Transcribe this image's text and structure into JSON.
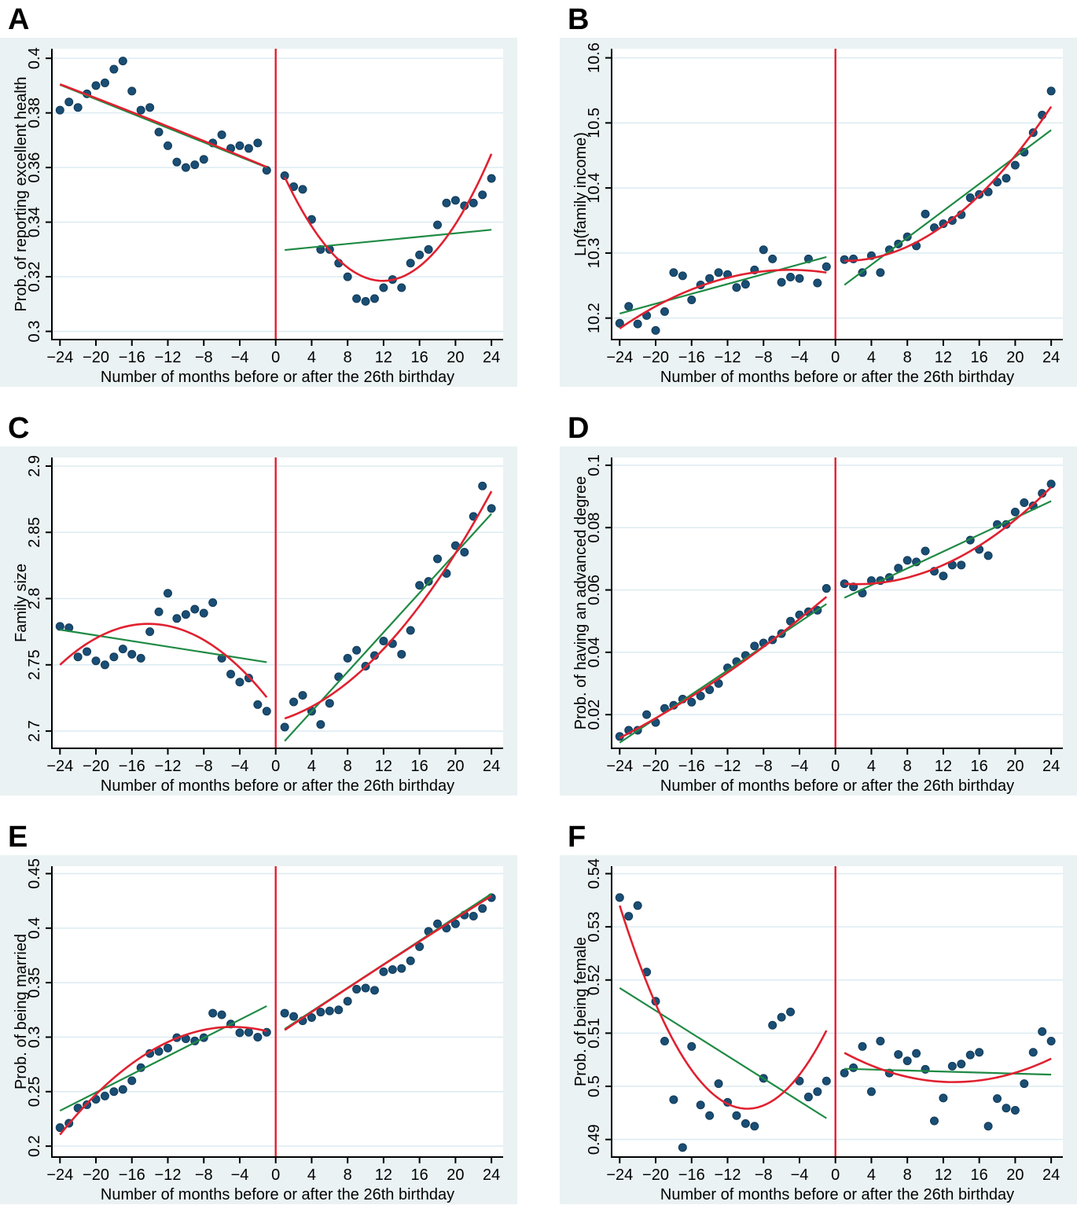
{
  "colors": {
    "page_bg": "#ffffff",
    "panel_bg": "#eaf2f3",
    "plot_bg": "#ffffff",
    "gridline": "#dcebf2",
    "axis": "#000000",
    "text": "#000000",
    "scatter_fill": "#1a4e74",
    "scatter_edge": "#123a58",
    "fit_red": "#e02130",
    "fit_green": "#1f8a44",
    "cutoff_red": "#e02130"
  },
  "x_axis": {
    "title": "Number of months before or after the 26th birthday",
    "tick_values": [
      -24,
      -20,
      -16,
      -12,
      -8,
      -4,
      0,
      4,
      8,
      12,
      16,
      20,
      24
    ],
    "tick_labels": [
      "−24",
      "−20",
      "−16",
      "−12",
      "−8",
      "−4",
      "0",
      "4",
      "8",
      "12",
      "16",
      "20",
      "24"
    ]
  },
  "chart_data": [
    {
      "letter": "A",
      "type": "scatter",
      "ylabel": "Prob. of reporting excellent health",
      "ytick_values": [
        0.3,
        0.32,
        0.34,
        0.36,
        0.38,
        0.4
      ],
      "ytick_labels": [
        "0.3",
        "0.32",
        "0.34",
        "0.36",
        "0.38",
        "0.4"
      ],
      "ylim": [
        0.297,
        0.4035
      ],
      "cutoff_x": 0,
      "x_pre_start": -24,
      "x_post_start": 1,
      "y_pre": [
        0.381,
        0.384,
        0.382,
        0.387,
        0.39,
        0.391,
        0.396,
        0.399,
        0.388,
        0.381,
        0.382,
        0.373,
        0.368,
        0.362,
        0.36,
        0.361,
        0.363,
        0.369,
        0.372,
        0.367,
        0.368,
        0.367,
        0.369,
        0.359
      ],
      "y_post": [
        0.357,
        0.353,
        0.352,
        0.341,
        0.33,
        0.33,
        0.325,
        0.32,
        0.312,
        0.311,
        0.312,
        0.316,
        0.319,
        0.316,
        0.325,
        0.328,
        0.33,
        0.339,
        0.347,
        0.348,
        0.346,
        0.347,
        0.35,
        0.356
      ],
      "fits": [
        {
          "kind": "linear",
          "color": "green",
          "points": [
            [
              -24,
              0.3903
            ],
            [
              -1,
              0.36
            ]
          ]
        },
        {
          "kind": "quadratic",
          "color": "red",
          "points": [
            [
              -24,
              0.3905
            ],
            [
              -12.5,
              0.3757
            ],
            [
              -1,
              0.3602
            ]
          ]
        },
        {
          "kind": "linear",
          "color": "green",
          "points": [
            [
              1,
              0.3298
            ],
            [
              24,
              0.3372
            ]
          ]
        },
        {
          "kind": "quadratic",
          "color": "red",
          "points": [
            [
              1,
              0.3565
            ],
            [
              12,
              0.3185
            ],
            [
              24,
              0.365
            ]
          ]
        }
      ]
    },
    {
      "letter": "B",
      "type": "scatter",
      "ylabel": "Ln(family income)",
      "ytick_values": [
        10.2,
        10.3,
        10.4,
        10.5,
        10.6
      ],
      "ytick_labels": [
        "10.2",
        "10.3",
        "10.4",
        "10.5",
        "10.6"
      ],
      "ylim": [
        10.167,
        10.614
      ],
      "cutoff_x": 0,
      "x_pre_start": -24,
      "x_post_start": 1,
      "y_pre": [
        10.192,
        10.218,
        10.191,
        10.204,
        10.181,
        10.21,
        10.27,
        10.265,
        10.228,
        10.251,
        10.261,
        10.27,
        10.267,
        10.247,
        10.252,
        10.274,
        10.305,
        10.291,
        10.255,
        10.263,
        10.261,
        10.291,
        10.254,
        10.279
      ],
      "y_post": [
        10.29,
        10.291,
        10.27,
        10.296,
        10.27,
        10.305,
        10.314,
        10.325,
        10.311,
        10.36,
        10.339,
        10.345,
        10.35,
        10.359,
        10.385,
        10.39,
        10.394,
        10.409,
        10.415,
        10.435,
        10.455,
        10.485,
        10.512,
        10.549
      ],
      "fits": [
        {
          "kind": "linear",
          "color": "green",
          "points": [
            [
              -24,
              10.207
            ],
            [
              -1,
              10.294
            ]
          ]
        },
        {
          "kind": "quadratic",
          "color": "red",
          "points": [
            [
              -24,
              10.184
            ],
            [
              -12,
              10.262
            ],
            [
              -1,
              10.27
            ]
          ]
        },
        {
          "kind": "linear",
          "color": "green",
          "points": [
            [
              1,
              10.251
            ],
            [
              24,
              10.489
            ]
          ]
        },
        {
          "kind": "quadratic",
          "color": "red",
          "points": [
            [
              1,
              10.288
            ],
            [
              12,
              10.342
            ],
            [
              24,
              10.525
            ]
          ]
        }
      ]
    },
    {
      "letter": "C",
      "type": "scatter",
      "ylabel": "Family size",
      "ytick_values": [
        2.7,
        2.75,
        2.8,
        2.85,
        2.9
      ],
      "ytick_labels": [
        "2.7",
        "2.75",
        "2.8",
        "2.85",
        "2.9"
      ],
      "ylim": [
        2.687,
        2.9065
      ],
      "cutoff_x": 0,
      "x_pre_start": -24,
      "x_post_start": 1,
      "y_pre": [
        2.779,
        2.778,
        2.756,
        2.76,
        2.753,
        2.75,
        2.756,
        2.762,
        2.758,
        2.755,
        2.775,
        2.79,
        2.804,
        2.785,
        2.788,
        2.792,
        2.789,
        2.797,
        2.755,
        2.743,
        2.737,
        2.74,
        2.72,
        2.715
      ],
      "y_post": [
        2.703,
        2.722,
        2.727,
        2.715,
        2.705,
        2.721,
        2.741,
        2.755,
        2.761,
        2.749,
        2.757,
        2.768,
        2.766,
        2.758,
        2.776,
        2.81,
        2.813,
        2.83,
        2.819,
        2.84,
        2.835,
        2.862,
        2.885,
        2.868
      ],
      "fits": [
        {
          "kind": "linear",
          "color": "green",
          "points": [
            [
              -24,
              2.7765
            ],
            [
              -1,
              2.752
            ]
          ]
        },
        {
          "kind": "quadratic",
          "color": "red",
          "points": [
            [
              -24,
              2.75
            ],
            [
              -13,
              2.7805
            ],
            [
              -1,
              2.7255
            ]
          ]
        },
        {
          "kind": "linear",
          "color": "green",
          "points": [
            [
              1,
              2.6925
            ],
            [
              24,
              2.864
            ]
          ]
        },
        {
          "kind": "quadratic",
          "color": "red",
          "points": [
            [
              1,
              2.7095
            ],
            [
              12,
              2.762
            ],
            [
              24,
              2.881
            ]
          ]
        }
      ]
    },
    {
      "letter": "D",
      "type": "scatter",
      "ylabel": "Prob. of having an advanced degree",
      "ytick_values": [
        0.02,
        0.04,
        0.06,
        0.08,
        0.1
      ],
      "ytick_labels": [
        "0.02",
        "0.04",
        "0.06",
        "0.08",
        "0.1"
      ],
      "ylim": [
        0.0092,
        0.1025
      ],
      "cutoff_x": 0,
      "x_pre_start": -24,
      "x_post_start": 1,
      "y_pre": [
        0.013,
        0.015,
        0.015,
        0.02,
        0.0175,
        0.022,
        0.023,
        0.025,
        0.024,
        0.026,
        0.028,
        0.03,
        0.035,
        0.037,
        0.039,
        0.042,
        0.043,
        0.044,
        0.046,
        0.05,
        0.052,
        0.053,
        0.0535,
        0.0605
      ],
      "y_post": [
        0.062,
        0.061,
        0.059,
        0.063,
        0.063,
        0.064,
        0.067,
        0.0695,
        0.069,
        0.0725,
        0.066,
        0.0645,
        0.068,
        0.068,
        0.076,
        0.073,
        0.071,
        0.081,
        0.081,
        0.085,
        0.088,
        0.087,
        0.091,
        0.094
      ],
      "fits": [
        {
          "kind": "linear",
          "color": "green",
          "points": [
            [
              -24,
              0.011
            ],
            [
              -1,
              0.0555
            ]
          ]
        },
        {
          "kind": "quadratic",
          "color": "red",
          "points": [
            [
              -24,
              0.0125
            ],
            [
              -12.5,
              0.0325
            ],
            [
              -1,
              0.0578
            ]
          ]
        },
        {
          "kind": "linear",
          "color": "green",
          "points": [
            [
              1,
              0.0575
            ],
            [
              24,
              0.0885
            ]
          ]
        },
        {
          "kind": "quadratic",
          "color": "red",
          "points": [
            [
              1,
              0.062
            ],
            [
              12,
              0.068
            ],
            [
              24,
              0.093
            ]
          ]
        }
      ]
    },
    {
      "letter": "E",
      "type": "scatter",
      "ylabel": "Prob. of being married",
      "ytick_values": [
        0.2,
        0.25,
        0.3,
        0.35,
        0.4,
        0.45
      ],
      "ytick_labels": [
        "0.2",
        "0.25",
        "0.3",
        "0.35",
        "0.4",
        "0.45"
      ],
      "ylim": [
        0.19,
        0.4568
      ],
      "cutoff_x": 0,
      "x_pre_start": -24,
      "x_post_start": 1,
      "y_pre": [
        0.217,
        0.221,
        0.235,
        0.238,
        0.243,
        0.246,
        0.25,
        0.252,
        0.26,
        0.272,
        0.285,
        0.287,
        0.29,
        0.2995,
        0.2985,
        0.2965,
        0.2995,
        0.322,
        0.3205,
        0.312,
        0.304,
        0.3045,
        0.3,
        0.3045
      ],
      "y_post": [
        0.322,
        0.319,
        0.315,
        0.318,
        0.323,
        0.324,
        0.325,
        0.333,
        0.344,
        0.345,
        0.343,
        0.36,
        0.362,
        0.363,
        0.37,
        0.383,
        0.397,
        0.404,
        0.4,
        0.404,
        0.412,
        0.411,
        0.418,
        0.428
      ],
      "fits": [
        {
          "kind": "linear",
          "color": "green",
          "points": [
            [
              -24,
              0.2325
            ],
            [
              -1,
              0.3285
            ]
          ]
        },
        {
          "kind": "quadratic",
          "color": "red",
          "points": [
            [
              -24,
              0.2105
            ],
            [
              -12,
              0.2955
            ],
            [
              -1,
              0.3055
            ]
          ]
        },
        {
          "kind": "linear",
          "color": "green",
          "points": [
            [
              1,
              0.3075
            ],
            [
              24,
              0.4315
            ]
          ]
        },
        {
          "kind": "quadratic",
          "color": "red",
          "points": [
            [
              1,
              0.3065
            ],
            [
              12,
              0.3665
            ],
            [
              24,
              0.4295
            ]
          ]
        }
      ]
    },
    {
      "letter": "F",
      "type": "scatter",
      "ylabel": "Prob. of being female",
      "ytick_values": [
        0.49,
        0.5,
        0.51,
        0.52,
        0.53,
        0.54
      ],
      "ytick_labels": [
        "0.49",
        "0.5",
        "0.51",
        "0.52",
        "0.53",
        "0.54"
      ],
      "ylim": [
        0.4867,
        0.5414
      ],
      "cutoff_x": 0,
      "x_pre_start": -24,
      "x_post_start": 1,
      "y_pre": [
        0.5355,
        0.532,
        0.534,
        0.5215,
        0.516,
        0.5085,
        0.4975,
        0.4885,
        0.5075,
        0.4965,
        0.4945,
        0.5005,
        0.497,
        0.4945,
        0.493,
        0.4925,
        0.5015,
        0.5115,
        0.513,
        0.514,
        0.501,
        0.498,
        0.499,
        0.501
      ],
      "y_post": [
        0.5025,
        0.5035,
        0.5075,
        0.499,
        0.5085,
        0.5025,
        0.506,
        0.5048,
        0.5062,
        0.5032,
        0.4935,
        0.4978,
        0.5038,
        0.5042,
        0.5059,
        0.5064,
        0.4925,
        0.4977,
        0.4959,
        0.4955,
        0.5005,
        0.5064,
        0.5103,
        0.5085
      ],
      "fits": [
        {
          "kind": "linear",
          "color": "green",
          "points": [
            [
              -24,
              0.5185
            ],
            [
              -1,
              0.494
            ]
          ]
        },
        {
          "kind": "quadratic",
          "color": "red",
          "points": [
            [
              -24,
              0.534
            ],
            [
              -12,
              0.4967
            ],
            [
              -1,
              0.5105
            ]
          ]
        },
        {
          "kind": "linear",
          "color": "green",
          "points": [
            [
              1,
              0.5033
            ],
            [
              24,
              0.5022
            ]
          ]
        },
        {
          "kind": "quadratic",
          "color": "red",
          "points": [
            [
              1,
              0.5063
            ],
            [
              13,
              0.5008
            ],
            [
              24,
              0.5052
            ]
          ]
        }
      ]
    }
  ]
}
